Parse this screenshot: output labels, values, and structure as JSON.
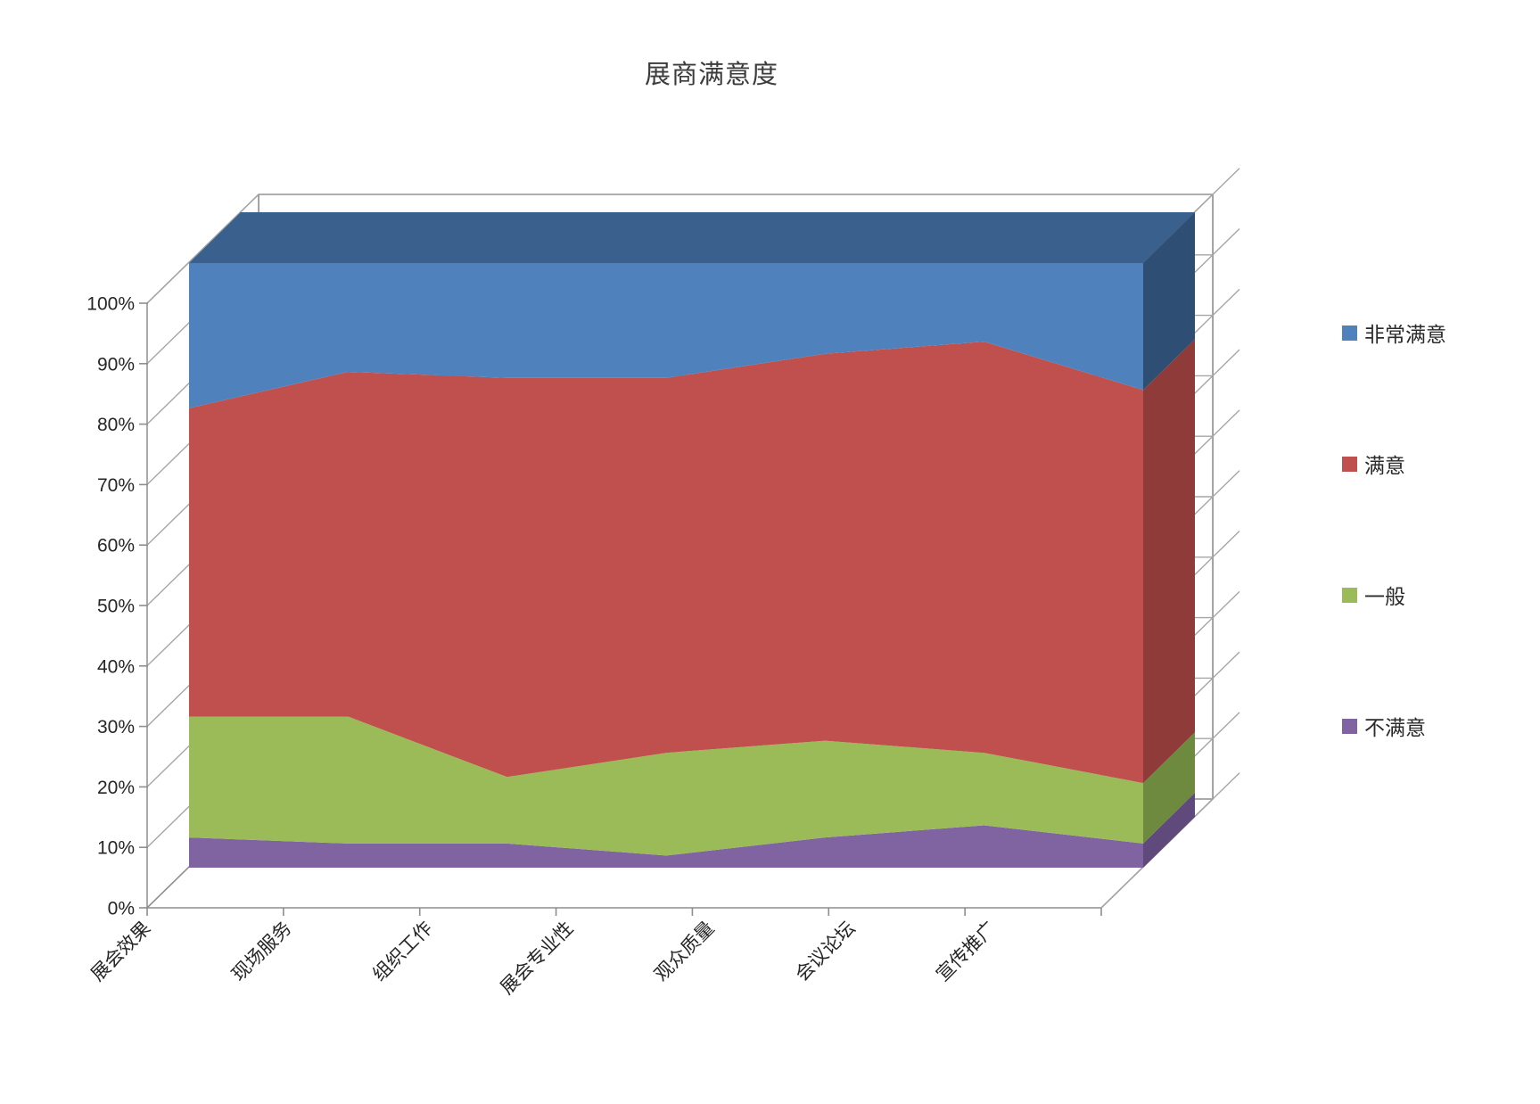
{
  "title": "展商满意度",
  "legend": {
    "position": "right",
    "items": [
      {
        "label": "非常满意",
        "color": "#4F81BD"
      },
      {
        "label": "满意",
        "color": "#C0504D"
      },
      {
        "label": "一般",
        "color": "#9BBB59"
      },
      {
        "label": "不满意",
        "color": "#8064A2"
      }
    ]
  },
  "y_axis": {
    "tick_labels": [
      "0%",
      "10%",
      "20%",
      "30%",
      "40%",
      "50%",
      "60%",
      "70%",
      "80%",
      "90%",
      "100%"
    ]
  },
  "x_axis": {
    "categories": [
      "展会效果",
      "现场服务",
      "组织工作",
      "展会专业性",
      "观众质量",
      "会议论坛",
      "宣传推广"
    ]
  },
  "chart_data": {
    "type": "area",
    "subtype": "3d-100-percent-stacked",
    "title": "展商满意度",
    "categories": [
      "展会效果",
      "现场服务",
      "组织工作",
      "展会专业性",
      "观众质量",
      "会议论坛",
      "宣传推广"
    ],
    "series": [
      {
        "name": "不满意",
        "color": "#8064A2",
        "side_color": "#5F4A7B",
        "values": [
          5,
          4,
          4,
          2,
          5,
          7,
          4
        ]
      },
      {
        "name": "一般",
        "color": "#9BBB59",
        "side_color": "#6E8A3F",
        "values": [
          20,
          21,
          11,
          17,
          16,
          12,
          10
        ]
      },
      {
        "name": "满意",
        "color": "#C0504D",
        "side_color": "#8E3B39",
        "values": [
          51,
          57,
          66,
          62,
          64,
          68,
          65
        ]
      },
      {
        "name": "非常满意",
        "color": "#4F81BD",
        "side_color": "#2F4E74",
        "top_color": "#3A608D",
        "values": [
          24,
          18,
          19,
          19,
          15,
          13,
          21
        ]
      }
    ],
    "stack_order_bottom_to_top": [
      "不满意",
      "一般",
      "满意",
      "非常满意"
    ],
    "cumulative_percent_by_category": {
      "不满意": [
        5,
        4,
        4,
        2,
        5,
        7,
        4
      ],
      "一般": [
        25,
        25,
        15,
        19,
        21,
        19,
        14
      ],
      "满意": [
        76,
        82,
        81,
        81,
        85,
        87,
        79
      ],
      "非常满意": [
        100,
        100,
        100,
        100,
        100,
        100,
        100
      ]
    },
    "y_axis": {
      "min": 0,
      "max": 100,
      "step": 10,
      "format": "percent"
    },
    "legend_position": "right",
    "gridlines": true
  }
}
